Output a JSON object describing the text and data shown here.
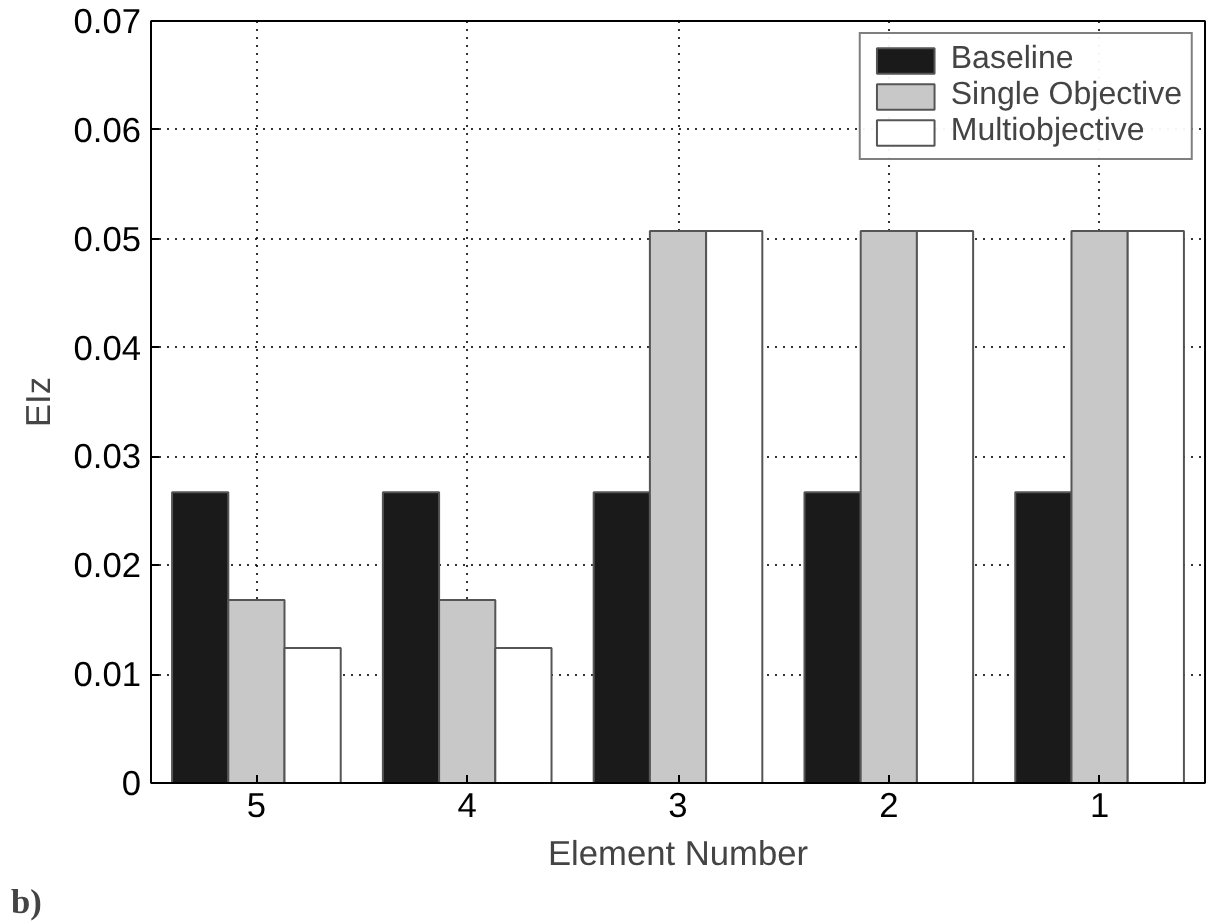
{
  "chart_data": {
    "type": "bar",
    "xlabel": "Element Number",
    "ylabel": "EIz",
    "categories": [
      "5",
      "4",
      "3",
      "2",
      "1"
    ],
    "series": [
      {
        "name": "Baseline",
        "color": "#1a1a1a",
        "values": [
          0.0267,
          0.0267,
          0.0267,
          0.0267,
          0.0267
        ]
      },
      {
        "name": "Single Objective",
        "color": "#c8c8c8",
        "values": [
          0.0168,
          0.0168,
          0.0507,
          0.0507,
          0.0507
        ]
      },
      {
        "name": "Multiobjective",
        "color": "#ffffff",
        "values": [
          0.0124,
          0.0124,
          0.0507,
          0.0507,
          0.0507
        ]
      }
    ],
    "ylim": [
      0,
      0.07
    ],
    "yticks": [
      0,
      0.01,
      0.02,
      0.03,
      0.04,
      0.05,
      0.06,
      0.07
    ],
    "grid": true,
    "legend": "top right",
    "annotations": [
      "b)"
    ]
  }
}
